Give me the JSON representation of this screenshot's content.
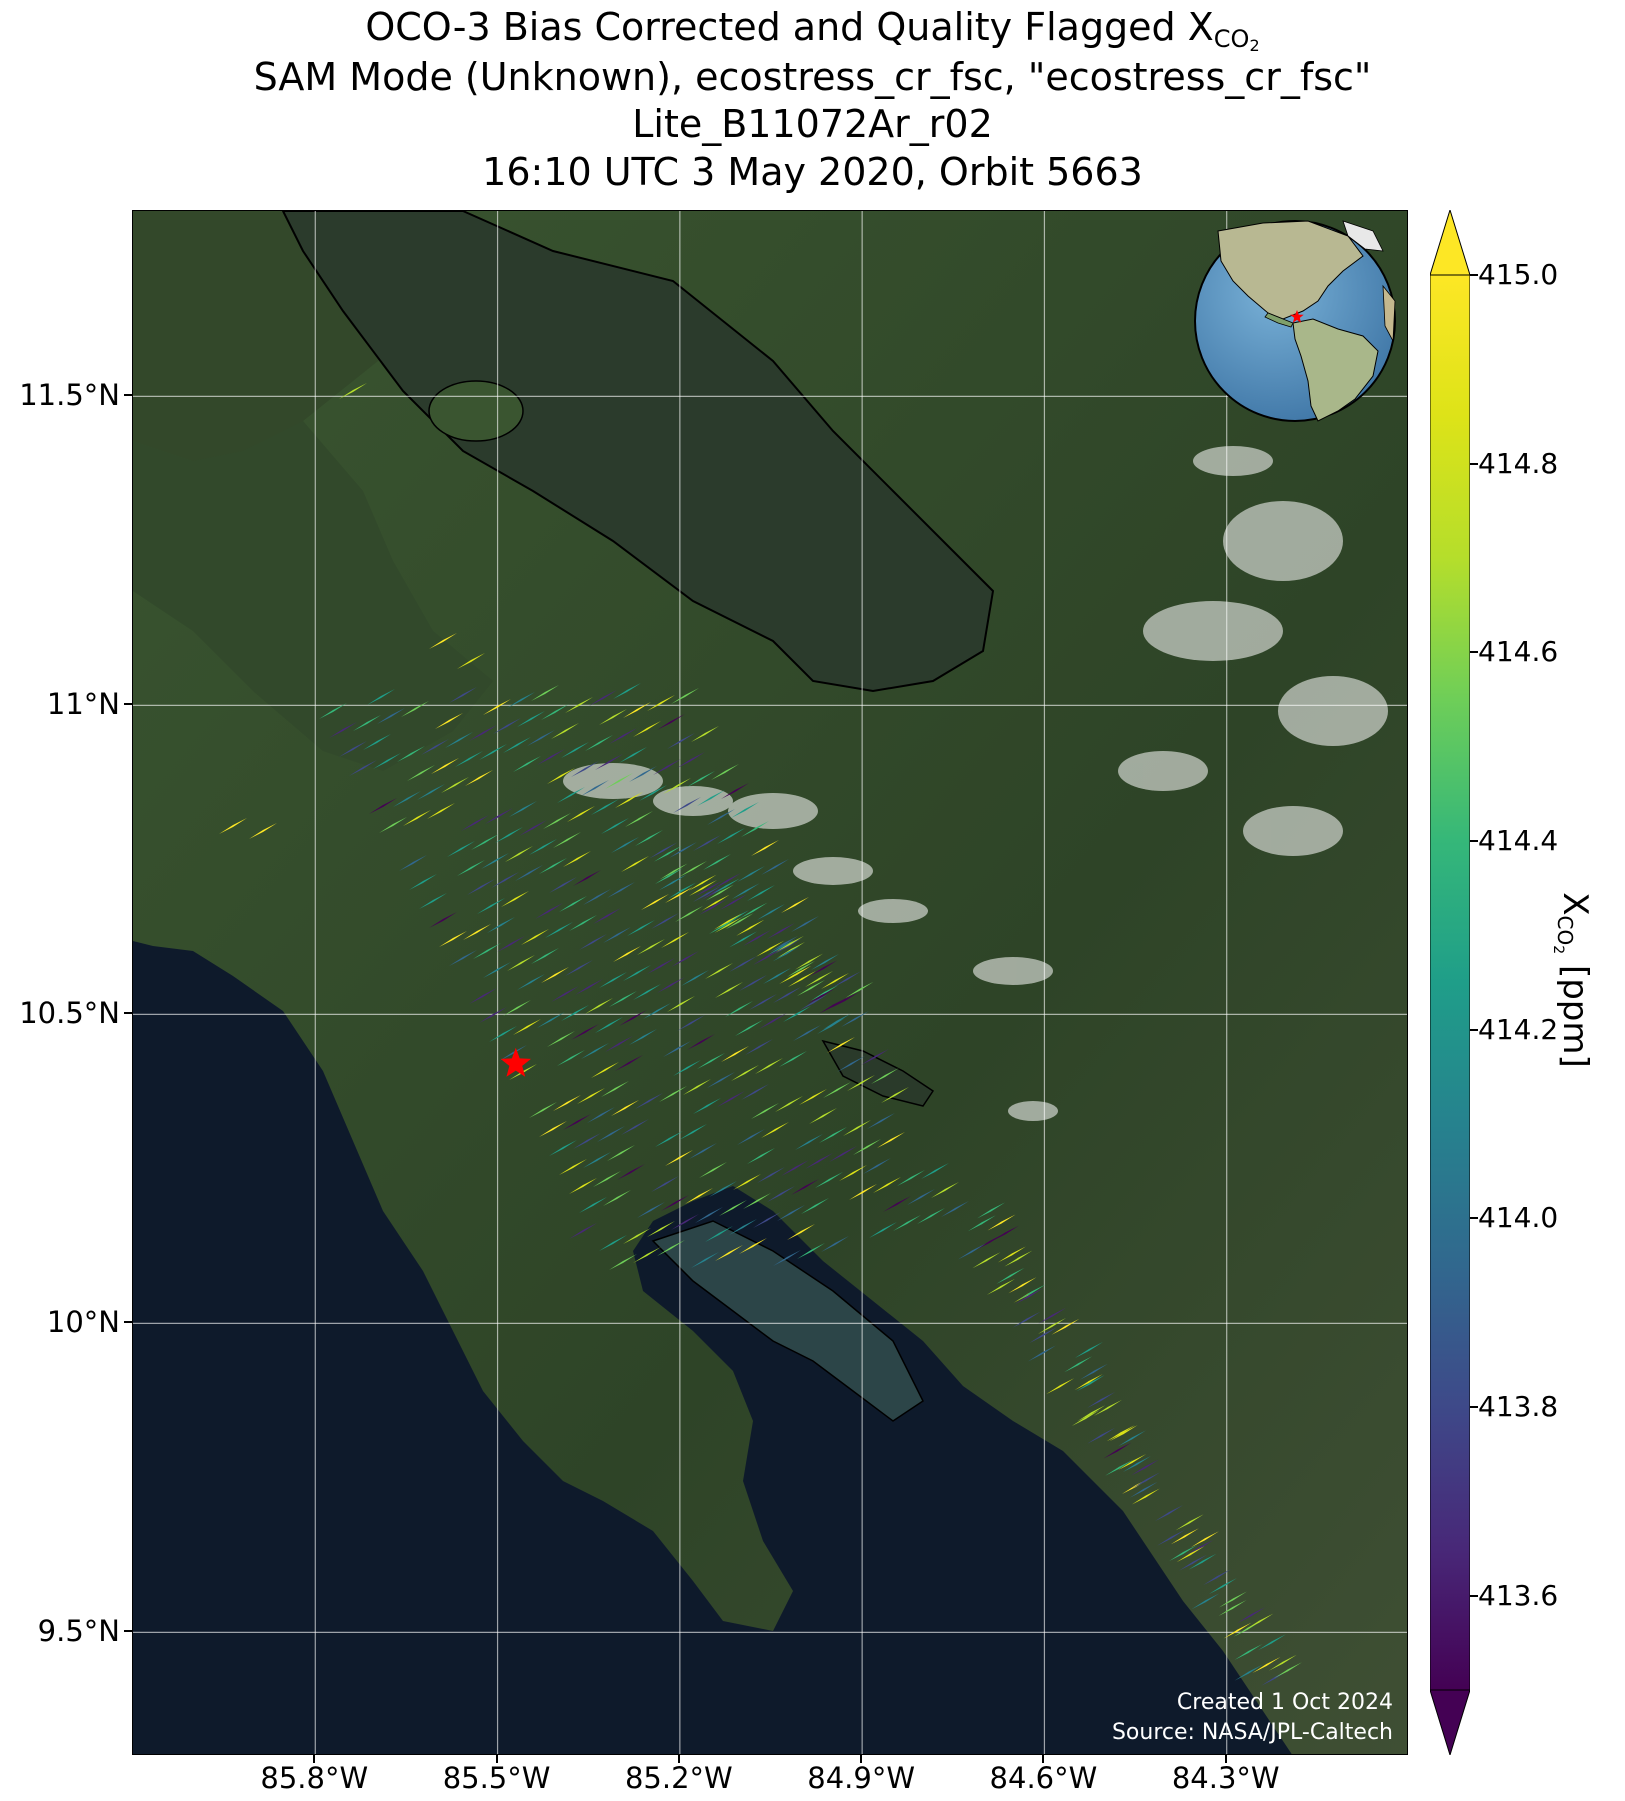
{
  "title": {
    "line1_prefix": "OCO-3 Bias Corrected and Quality Flagged X",
    "line1_sub": "CO",
    "line1_sub2": "2",
    "line2": "SAM Mode (Unknown), ecostress_cr_fsc, \"ecostress_cr_fsc\"",
    "line3": "Lite_B11072Ar_r02",
    "line4": "16:10 UTC 3 May 2020, Orbit 5663"
  },
  "axes": {
    "lat_ticks": [
      "11.5°N",
      "11°N",
      "10.5°N",
      "10°N",
      "9.5°N"
    ],
    "lon_ticks": [
      "85.8°W",
      "85.5°W",
      "85.2°W",
      "84.9°W",
      "84.6°W",
      "84.3°W"
    ],
    "lat_values": [
      11.5,
      11.0,
      10.5,
      10.0,
      9.5
    ],
    "lon_values": [
      -85.8,
      -85.5,
      -85.2,
      -84.9,
      -84.6,
      -84.3
    ],
    "lat_range": [
      9.3,
      11.8
    ],
    "lon_range": [
      -86.1,
      -84.0
    ],
    "grid": true
  },
  "colorbar": {
    "label_prefix": "X",
    "label_sub": "CO",
    "label_sub2": "2",
    "label_suffix": " [ppm]",
    "ticks": [
      "415.0",
      "414.8",
      "414.6",
      "414.4",
      "414.2",
      "414.0",
      "413.8",
      "413.6"
    ],
    "tick_values": [
      415.0,
      414.8,
      414.6,
      414.4,
      414.2,
      414.0,
      413.8,
      413.6
    ],
    "vmin": 413.5,
    "vmax": 415.0,
    "colormap": "viridis",
    "extend": "both"
  },
  "target": {
    "marker": "star",
    "color": "#ff0000",
    "lat": 10.42,
    "lon": -85.47
  },
  "inset_globe": {
    "marker_color": "#ff0000",
    "marker": "star"
  },
  "credit": {
    "line1": "Created 1 Oct 2024",
    "line2": "Source: NASA/JPL-Caltech"
  },
  "colors": {
    "ocean": "#0e1a2b",
    "land": "#33482a",
    "lake": "#2a3a2a"
  }
}
